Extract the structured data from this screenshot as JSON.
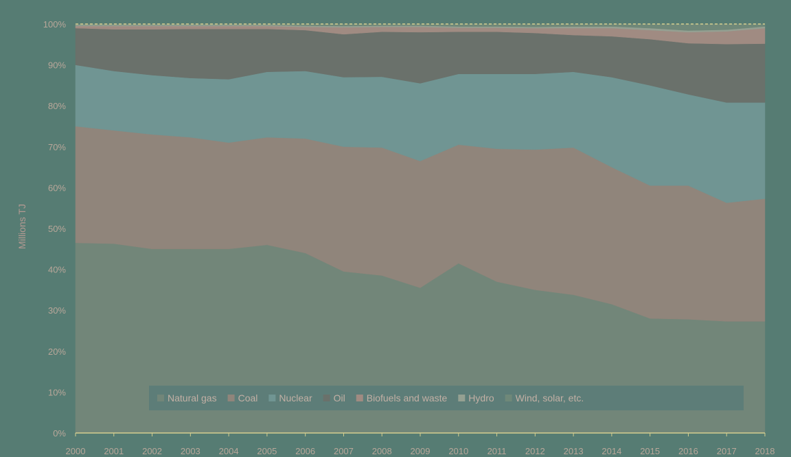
{
  "chart_data": {
    "type": "area",
    "stacked": true,
    "ylabel": "Millions TJ",
    "ylim": [
      0,
      100
    ],
    "y_ticks": [
      "0%",
      "10%",
      "20%",
      "30%",
      "40%",
      "50%",
      "60%",
      "70%",
      "80%",
      "90%",
      "100%"
    ],
    "x": [
      "2000",
      "2001",
      "2002",
      "2003",
      "2004",
      "2005",
      "2006",
      "2007",
      "2008",
      "2009",
      "2010",
      "2011",
      "2012",
      "2013",
      "2014",
      "2015",
      "2016",
      "2017",
      "2018"
    ],
    "legend_position": "bottom-inside",
    "grid": false,
    "series": [
      {
        "name": "Natural gas",
        "color": "#728679",
        "values": [
          46.5,
          46.3,
          45,
          45,
          45,
          46,
          44,
          39.5,
          38.5,
          35.5,
          41.5,
          37,
          35,
          33.8,
          31.5,
          28,
          27.8,
          27.3,
          27.3
        ]
      },
      {
        "name": "Coal",
        "color": "#90857b",
        "values": [
          28.5,
          27.7,
          28,
          27.3,
          26,
          26.3,
          28,
          30.5,
          31.3,
          31,
          29,
          32.5,
          34.3,
          36,
          33.5,
          32.5,
          32.7,
          29,
          30
        ]
      },
      {
        "name": "Nuclear",
        "color": "#709593",
        "values": [
          15,
          14.5,
          14.5,
          14.5,
          15.5,
          16,
          16.5,
          17,
          17.3,
          19,
          17.3,
          18.3,
          18.5,
          18.5,
          22,
          24.5,
          22.3,
          24.5,
          23.5
        ]
      },
      {
        "name": "Oil",
        "color": "#6a716b",
        "values": [
          9,
          10.2,
          11.2,
          12,
          12.3,
          10.5,
          10,
          10.5,
          11,
          12.5,
          10.3,
          10.3,
          10,
          9,
          10,
          11.3,
          12.5,
          14.3,
          14.4
        ]
      },
      {
        "name": "Biofuels and waste",
        "color": "#a08b82",
        "values": [
          0.5,
          0.8,
          0.8,
          0.7,
          0.7,
          0.7,
          0.8,
          1.7,
          1.2,
          1.3,
          1,
          1,
          1.2,
          1.7,
          2,
          2.2,
          2.7,
          3.1,
          3.8
        ]
      },
      {
        "name": "Hydro",
        "color": "#95a092",
        "values": [
          0.3,
          0.3,
          0.3,
          0.3,
          0.3,
          0.3,
          0.3,
          0.3,
          0.3,
          0.3,
          0.3,
          0.3,
          0.3,
          0.4,
          0.4,
          0.5,
          0.4,
          0.4,
          0.4
        ]
      },
      {
        "name": "Wind, solar, etc.",
        "color": "#6f8879",
        "values": [
          0.2,
          0.2,
          0.2,
          0.2,
          0.2,
          0.2,
          0.4,
          0.5,
          0.4,
          0.4,
          0.6,
          0.6,
          0.7,
          0.6,
          0.6,
          1,
          1.6,
          1.4,
          0.6
        ]
      }
    ]
  },
  "colors": {
    "background": "#567c73",
    "plot_border": "#d6cf8f",
    "axis": "#d6cf8f",
    "tick_text": "#b9a79a",
    "axis_label": "#b59a93",
    "legend_bg": "#5d7d78",
    "legend_text": "#c3b0a5"
  }
}
